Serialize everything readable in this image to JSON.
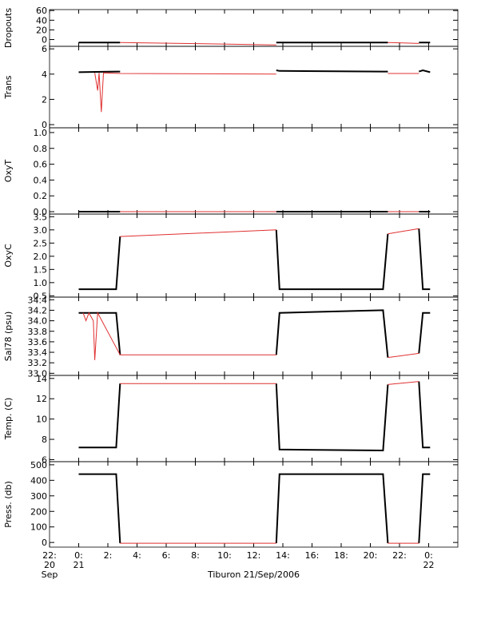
{
  "chart_data": [
    {
      "type": "line",
      "ylabel": "Dropouts",
      "xlim": [
        -2,
        26
      ],
      "ylim": [
        -14,
        62
      ],
      "yticks": [
        0,
        20,
        40,
        60
      ],
      "series": [
        {
          "color": "#000000",
          "x": [
            0,
            2.57,
            2.84,
            8,
            13.55,
            13.77,
            20.87,
            21.2,
            22,
            23.33,
            23.6,
            24.1
          ],
          "values": [
            -6,
            -6,
            -6,
            null,
            -6,
            -6,
            -6,
            -6,
            null,
            -6,
            -6,
            -6
          ]
        },
        {
          "color": "#e03030",
          "x": [
            2.84,
            13.55,
            17,
            21.2,
            23.33
          ],
          "values": [
            -6,
            -11,
            null,
            -6,
            -8
          ]
        }
      ]
    },
    {
      "type": "line",
      "ylabel": "Trans",
      "xlim": [
        -2,
        26
      ],
      "ylim": [
        -0.25,
        6.2
      ],
      "yticks": [
        0,
        2,
        4,
        6
      ],
      "series": [
        {
          "color": "#000000",
          "x": [
            0,
            2.57,
            2.84,
            8,
            13.55,
            13.77,
            20.87,
            21.2,
            22,
            23.33,
            23.6,
            24.1
          ],
          "values": [
            4.15,
            4.2,
            4.2,
            null,
            4.3,
            4.25,
            4.2,
            4.2,
            null,
            4.2,
            4.3,
            4.15
          ]
        },
        {
          "color": "#e03030",
          "x": [
            1.1,
            1.3,
            1.4,
            1.55,
            1.7,
            2.84,
            13.55,
            17,
            21.2,
            23.33
          ],
          "values": [
            4.1,
            2.7,
            4.1,
            1.0,
            4.1,
            4.05,
            4.0,
            null,
            4.05,
            4.05
          ]
        }
      ]
    },
    {
      "type": "line",
      "ylabel": "OxyT",
      "xlim": [
        -2,
        26
      ],
      "ylim": [
        -0.03,
        1.06
      ],
      "yticks": [
        {
          "value": 0,
          "label": "0.0"
        },
        0.2,
        0.4,
        0.6,
        0.8,
        {
          "value": 1,
          "label": "1.0"
        }
      ],
      "series": [
        {
          "color": "#000000",
          "x": [
            0,
            2.57,
            2.84,
            8,
            13.55,
            13.77,
            20.87,
            21.2,
            22,
            23.33,
            23.6,
            24.1
          ],
          "values": [
            0,
            0,
            0,
            null,
            0,
            0,
            0,
            0,
            null,
            0,
            0,
            0
          ]
        },
        {
          "color": "#e03030",
          "x": [
            2.84,
            13.55,
            17,
            21.2,
            23.33
          ],
          "values": [
            0,
            0,
            null,
            0,
            0
          ]
        }
      ]
    },
    {
      "type": "line",
      "ylabel": "OxyC",
      "xlim": [
        -2,
        26
      ],
      "ylim": [
        0.45,
        3.6
      ],
      "yticks": [
        0.5,
        {
          "value": 1,
          "label": "1.0"
        },
        1.5,
        {
          "value": 2,
          "label": "2.0"
        },
        2.5,
        {
          "value": 3,
          "label": "3.0"
        },
        3.5
      ],
      "series": [
        {
          "color": "#000000",
          "x": [
            0,
            2.57,
            2.84,
            8,
            13.55,
            13.77,
            20.87,
            21.2,
            22,
            23.33,
            23.6,
            24.1
          ],
          "values": [
            0.75,
            0.75,
            2.75,
            null,
            3.0,
            0.75,
            0.75,
            2.85,
            null,
            3.05,
            0.75,
            0.75
          ]
        },
        {
          "color": "#e03030",
          "x": [
            2.84,
            13.55,
            17,
            21.2,
            23.33
          ],
          "values": [
            2.75,
            3.0,
            null,
            2.85,
            3.05
          ]
        }
      ]
    },
    {
      "type": "line",
      "ylabel": "Sal78 (psu)",
      "xlim": [
        -2,
        26
      ],
      "ylim": [
        32.96,
        34.45
      ],
      "yticks": [
        {
          "value": 33,
          "label": "33.0"
        },
        33.2,
        33.4,
        33.6,
        33.8,
        {
          "value": 34,
          "label": "34.0"
        },
        34.2,
        34.4
      ],
      "series": [
        {
          "color": "#000000",
          "x": [
            0,
            2.57,
            2.84,
            8,
            13.55,
            13.77,
            20.87,
            21.2,
            22,
            23.33,
            23.6,
            24.1
          ],
          "values": [
            34.15,
            34.15,
            33.35,
            null,
            33.35,
            34.15,
            34.2,
            33.3,
            null,
            33.38,
            34.15,
            34.15
          ]
        },
        {
          "color": "#e03030",
          "x": [
            0.3,
            0.5,
            0.7,
            1.0,
            1.1,
            1.3,
            2.84,
            13.55,
            17,
            21.2,
            23.33
          ],
          "values": [
            34.15,
            34.0,
            34.15,
            34.0,
            33.25,
            34.15,
            33.35,
            33.35,
            null,
            33.3,
            33.38
          ]
        }
      ]
    },
    {
      "type": "line",
      "ylabel": "Temp. (C)",
      "xlim": [
        -2,
        26
      ],
      "ylim": [
        5.8,
        14.3
      ],
      "yticks": [
        6,
        8,
        10,
        12,
        14
      ],
      "series": [
        {
          "color": "#000000",
          "x": [
            0,
            2.57,
            2.84,
            8,
            13.55,
            13.77,
            20.87,
            21.2,
            22,
            23.33,
            23.6,
            24.1
          ],
          "values": [
            7.2,
            7.2,
            13.5,
            null,
            13.5,
            7.0,
            6.9,
            13.4,
            null,
            13.7,
            7.2,
            7.2
          ]
        },
        {
          "color": "#e03030",
          "x": [
            2.84,
            13.55,
            17,
            21.2,
            23.33
          ],
          "values": [
            13.5,
            13.5,
            null,
            13.4,
            13.7
          ]
        }
      ]
    },
    {
      "type": "line",
      "ylabel": "Press. (db)",
      "xlabel": "Tiburon 21/Sep/2006",
      "xlim": [
        -2,
        26
      ],
      "ylim": [
        -30,
        520
      ],
      "yticks": [
        0,
        100,
        200,
        300,
        400,
        500
      ],
      "xticks": [
        {
          "value": -2,
          "label": "22:\n20\nSep"
        },
        {
          "value": 0,
          "label": "0:\n21"
        },
        {
          "value": 2,
          "label": "2:"
        },
        {
          "value": 4,
          "label": "4:"
        },
        {
          "value": 6,
          "label": "6:"
        },
        {
          "value": 8,
          "label": "8:"
        },
        {
          "value": 10,
          "label": "10:"
        },
        {
          "value": 12,
          "label": "12:"
        },
        {
          "value": 14,
          "label": "14:"
        },
        {
          "value": 16,
          "label": "16:"
        },
        {
          "value": 18,
          "label": "18:"
        },
        {
          "value": 20,
          "label": "20:"
        },
        {
          "value": 22,
          "label": "22:"
        },
        {
          "value": 24,
          "label": "0:\n22"
        }
      ],
      "series": [
        {
          "color": "#000000",
          "x": [
            0,
            2.57,
            2.84,
            8,
            13.55,
            13.77,
            20.87,
            21.2,
            22,
            23.33,
            23.6,
            24.1
          ],
          "values": [
            440,
            440,
            -5,
            null,
            -5,
            440,
            440,
            -5,
            null,
            -5,
            440,
            440
          ]
        },
        {
          "color": "#e03030",
          "x": [
            2.84,
            13.55,
            17,
            21.2,
            23.33
          ],
          "values": [
            -5,
            -5,
            null,
            -5,
            -5
          ]
        }
      ]
    }
  ]
}
